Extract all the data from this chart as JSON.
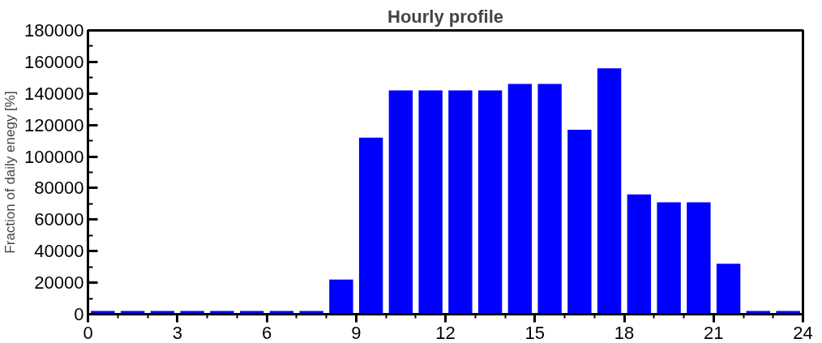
{
  "chart_data": {
    "type": "bar",
    "title": "Hourly profile",
    "ylabel": "Fraction of daily enegy [%]",
    "x": [
      0.5,
      1.5,
      2.5,
      3.5,
      4.5,
      5.5,
      6.5,
      7.5,
      8.5,
      9.5,
      10.5,
      11.5,
      12.5,
      13.5,
      14.5,
      15.5,
      16.5,
      17.5,
      18.5,
      19.5,
      20.5,
      21.5,
      22.5,
      23.5
    ],
    "values": [
      2000,
      2000,
      2000,
      2000,
      2000,
      2000,
      2000,
      2000,
      22000,
      112000,
      142000,
      142000,
      142000,
      142000,
      146000,
      146000,
      117000,
      156000,
      76000,
      71000,
      71000,
      32000,
      2000,
      2000
    ],
    "color": "#0000ff",
    "xlim": [
      0,
      24
    ],
    "xticks": [
      0,
      3,
      6,
      9,
      12,
      15,
      18,
      21,
      24
    ],
    "ylim": [
      0,
      180000
    ],
    "yticks": [
      0,
      20000,
      40000,
      60000,
      80000,
      100000,
      120000,
      140000,
      160000,
      180000
    ],
    "grid": false
  }
}
